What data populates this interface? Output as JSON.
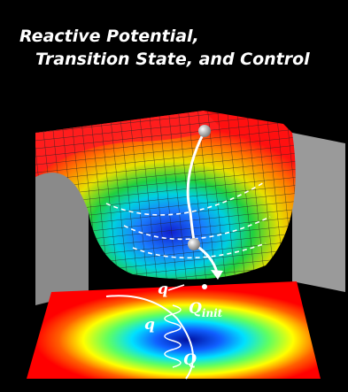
{
  "header": {
    "title_lines": [
      "Reactive Potential,",
      "Transition State, and Control"
    ]
  },
  "labels": {
    "q_top": "q",
    "q_left": "q",
    "q_init": {
      "main": "Q",
      "sub": "init"
    },
    "q_bottom": "Q"
  }
}
